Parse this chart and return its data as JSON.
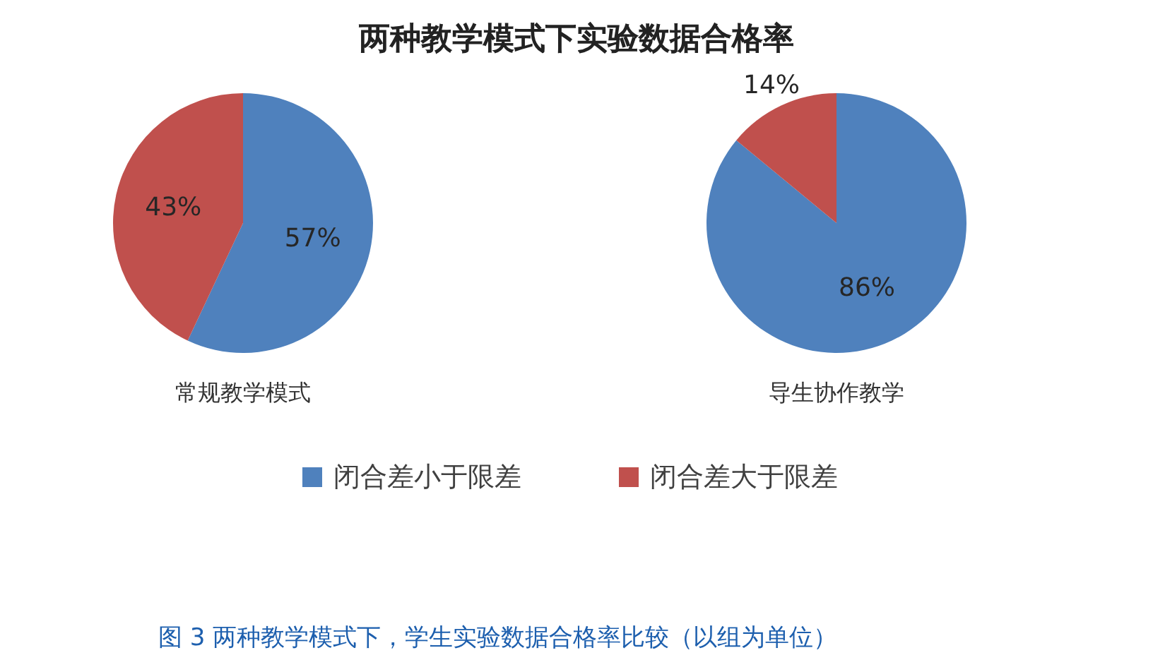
{
  "chart_data": {
    "type": "pie",
    "title": "两种教学模式下实验数据合格率",
    "categories": [
      "闭合差小于限差",
      "闭合差大于限差"
    ],
    "colors": [
      "#4f81bd",
      "#c0504d"
    ],
    "series": [
      {
        "name": "常规教学模式",
        "values": [
          57,
          43
        ],
        "value_labels": [
          "57%",
          "43%"
        ]
      },
      {
        "name": "导生协作教学",
        "values": [
          86,
          14
        ],
        "value_labels": [
          "86%",
          "14%"
        ]
      }
    ],
    "legend": "bottom",
    "annotations": [
      "图 3 两种教学模式下，学生实验数据合格率比较（以组为单位）"
    ]
  }
}
